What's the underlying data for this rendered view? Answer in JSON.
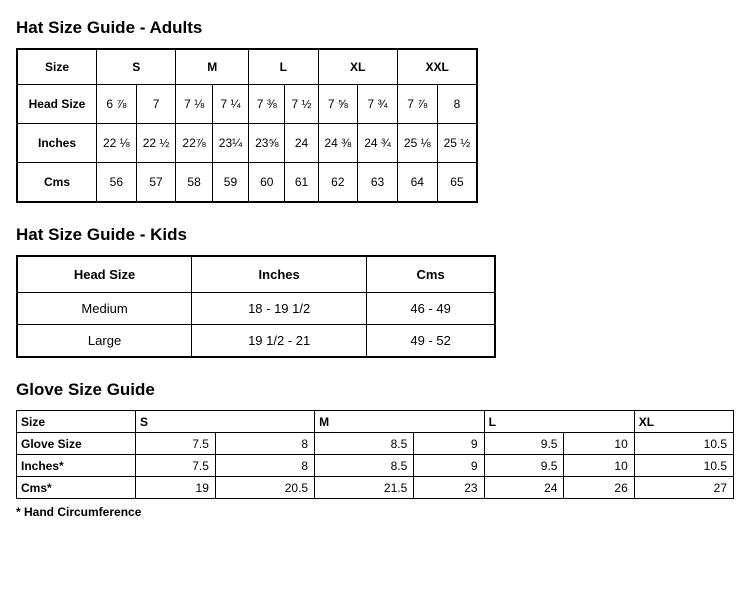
{
  "adults": {
    "title": "Hat Size Guide - Adults",
    "col_header_label": "Size",
    "sizes": [
      "S",
      "M",
      "L",
      "XL",
      "XXL"
    ],
    "rows": [
      {
        "label": "Head Size",
        "values": [
          "6 ⅞",
          "7",
          "7 ⅛",
          "7 ¼",
          "7 ⅜",
          "7 ½",
          "7 ⅝",
          "7 ¾",
          "7 ⅞",
          "8"
        ]
      },
      {
        "label": "Inches",
        "values": [
          "22 ⅛",
          "22 ½",
          "22⅞",
          "23¼",
          "23⅝",
          "24",
          "24 ⅜",
          "24 ¾",
          "25 ⅛",
          "25 ½"
        ]
      },
      {
        "label": "Cms",
        "values": [
          "56",
          "57",
          "58",
          "59",
          "60",
          "61",
          "62",
          "63",
          "64",
          "65"
        ]
      }
    ],
    "border_color": "#000000",
    "background_color": "#ffffff",
    "header_fontsize": 12,
    "cell_fontsize": 12
  },
  "kids": {
    "title": "Hat Size Guide - Kids",
    "columns": [
      "Head Size",
      "Inches",
      "Cms"
    ],
    "rows": [
      [
        "Medium",
        "18 - 19 1/2",
        "46 - 49"
      ],
      [
        "Large",
        "19 1/2 - 21",
        "49 - 52"
      ]
    ],
    "border_color": "#000000",
    "background_color": "#ffffff"
  },
  "glove": {
    "title": "Glove Size Guide",
    "col_header_label": "Size",
    "sizes": [
      "S",
      "M",
      "L",
      "XL"
    ],
    "size_spans": [
      2,
      2,
      2,
      1
    ],
    "rows": [
      {
        "label": "Glove Size",
        "values": [
          "7.5",
          "8",
          "8.5",
          "9",
          "9.5",
          "10",
          "10.5"
        ]
      },
      {
        "label": "Inches*",
        "values": [
          "7.5",
          "8",
          "8.5",
          "9",
          "9.5",
          "10",
          "10.5"
        ]
      },
      {
        "label": "Cms*",
        "values": [
          "19",
          "20.5",
          "21.5",
          "23",
          "24",
          "26",
          "27"
        ]
      }
    ],
    "footnote": "* Hand Circumference",
    "border_color": "#000000",
    "background_color": "#ffffff"
  }
}
